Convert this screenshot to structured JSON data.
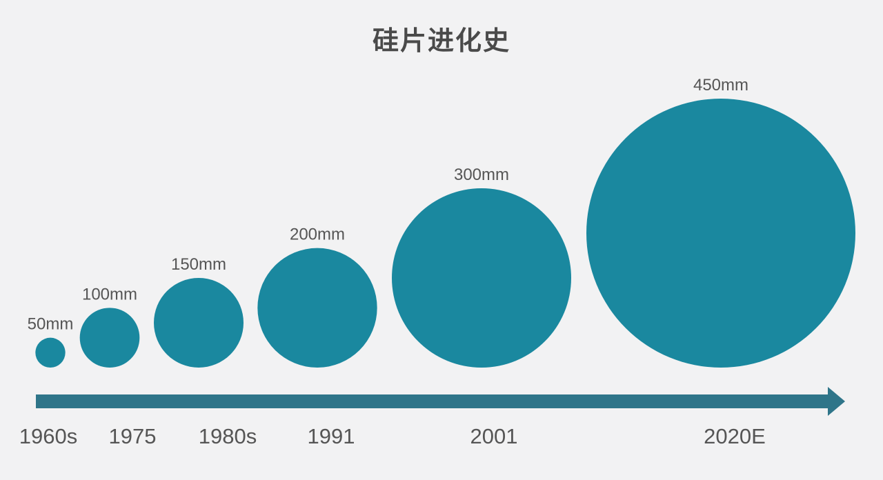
{
  "title": "硅片进化史",
  "colors": {
    "wafer": "#1a889f",
    "arrow": "#2f7589",
    "text": "#555555",
    "title": "#4a4a4a",
    "background": "#f2f2f3"
  },
  "wafers": [
    {
      "year": "1960s",
      "diameter_mm": 50,
      "size_label": "50mm"
    },
    {
      "year": "1975",
      "diameter_mm": 100,
      "size_label": "100mm"
    },
    {
      "year": "1980s",
      "diameter_mm": 150,
      "size_label": "150mm"
    },
    {
      "year": "1991",
      "diameter_mm": 200,
      "size_label": "200mm"
    },
    {
      "year": "2001",
      "diameter_mm": 300,
      "size_label": "300mm"
    },
    {
      "year": "2020E",
      "diameter_mm": 450,
      "size_label": "450mm"
    }
  ]
}
